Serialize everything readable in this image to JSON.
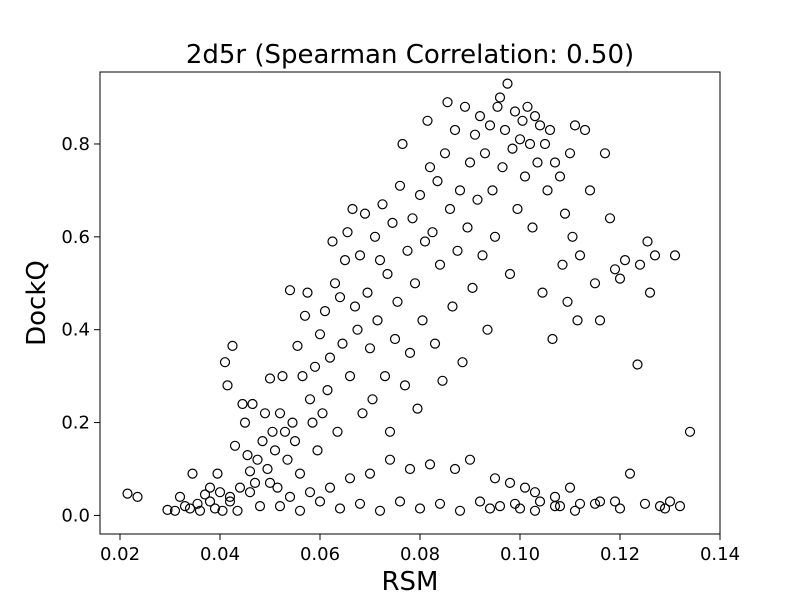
{
  "chart_data": {
    "type": "scatter",
    "title": "2d5r (Spearman Correlation: 0.50)",
    "xlabel": "RSM",
    "ylabel": "DockQ",
    "xlim": [
      0.016,
      0.14
    ],
    "ylim": [
      -0.04,
      0.955
    ],
    "xticks": [
      0.02,
      0.04,
      0.06,
      0.08,
      0.1,
      0.12,
      0.14
    ],
    "xtick_labels": [
      "0.02",
      "0.04",
      "0.06",
      "0.08",
      "0.10",
      "0.12",
      "0.14"
    ],
    "yticks": [
      0.0,
      0.2,
      0.4,
      0.6,
      0.8
    ],
    "ytick_labels": [
      "0.0",
      "0.2",
      "0.4",
      "0.6",
      "0.8"
    ],
    "grid": false,
    "marker": "open-circle",
    "marker_color": "#000000",
    "points": [
      [
        0.0215,
        0.047
      ],
      [
        0.0235,
        0.04
      ],
      [
        0.0295,
        0.012
      ],
      [
        0.031,
        0.01
      ],
      [
        0.032,
        0.04
      ],
      [
        0.033,
        0.02
      ],
      [
        0.034,
        0.015
      ],
      [
        0.0345,
        0.09
      ],
      [
        0.0355,
        0.025
      ],
      [
        0.036,
        0.01
      ],
      [
        0.037,
        0.045
      ],
      [
        0.038,
        0.03
      ],
      [
        0.039,
        0.015
      ],
      [
        0.0395,
        0.09
      ],
      [
        0.04,
        0.05
      ],
      [
        0.0405,
        0.01
      ],
      [
        0.041,
        0.33
      ],
      [
        0.0415,
        0.28
      ],
      [
        0.042,
        0.03
      ],
      [
        0.0425,
        0.365
      ],
      [
        0.043,
        0.15
      ],
      [
        0.0435,
        0.01
      ],
      [
        0.044,
        0.06
      ],
      [
        0.0445,
        0.24
      ],
      [
        0.045,
        0.2
      ],
      [
        0.0455,
        0.13
      ],
      [
        0.046,
        0.095
      ],
      [
        0.0465,
        0.24
      ],
      [
        0.047,
        0.07
      ],
      [
        0.0475,
        0.12
      ],
      [
        0.048,
        0.02
      ],
      [
        0.0485,
        0.16
      ],
      [
        0.049,
        0.22
      ],
      [
        0.0495,
        0.1
      ],
      [
        0.05,
        0.295
      ],
      [
        0.0505,
        0.18
      ],
      [
        0.051,
        0.14
      ],
      [
        0.0515,
        0.06
      ],
      [
        0.052,
        0.22
      ],
      [
        0.0525,
        0.3
      ],
      [
        0.053,
        0.18
      ],
      [
        0.0535,
        0.12
      ],
      [
        0.054,
        0.485
      ],
      [
        0.0545,
        0.2
      ],
      [
        0.055,
        0.16
      ],
      [
        0.0555,
        0.365
      ],
      [
        0.056,
        0.09
      ],
      [
        0.0565,
        0.3
      ],
      [
        0.057,
        0.43
      ],
      [
        0.0575,
        0.48
      ],
      [
        0.058,
        0.25
      ],
      [
        0.0585,
        0.2
      ],
      [
        0.059,
        0.32
      ],
      [
        0.0595,
        0.14
      ],
      [
        0.06,
        0.39
      ],
      [
        0.0605,
        0.22
      ],
      [
        0.061,
        0.44
      ],
      [
        0.0615,
        0.27
      ],
      [
        0.062,
        0.34
      ],
      [
        0.0625,
        0.59
      ],
      [
        0.063,
        0.5
      ],
      [
        0.0635,
        0.18
      ],
      [
        0.064,
        0.47
      ],
      [
        0.0645,
        0.37
      ],
      [
        0.065,
        0.55
      ],
      [
        0.0655,
        0.61
      ],
      [
        0.066,
        0.3
      ],
      [
        0.0665,
        0.66
      ],
      [
        0.067,
        0.45
      ],
      [
        0.0675,
        0.4
      ],
      [
        0.068,
        0.56
      ],
      [
        0.0685,
        0.22
      ],
      [
        0.069,
        0.65
      ],
      [
        0.0695,
        0.48
      ],
      [
        0.07,
        0.36
      ],
      [
        0.0705,
        0.25
      ],
      [
        0.071,
        0.6
      ],
      [
        0.0715,
        0.42
      ],
      [
        0.072,
        0.55
      ],
      [
        0.0725,
        0.67
      ],
      [
        0.073,
        0.3
      ],
      [
        0.0735,
        0.52
      ],
      [
        0.074,
        0.18
      ],
      [
        0.0745,
        0.63
      ],
      [
        0.075,
        0.38
      ],
      [
        0.0755,
        0.46
      ],
      [
        0.076,
        0.71
      ],
      [
        0.0765,
        0.8
      ],
      [
        0.077,
        0.28
      ],
      [
        0.0775,
        0.57
      ],
      [
        0.078,
        0.35
      ],
      [
        0.0785,
        0.64
      ],
      [
        0.079,
        0.5
      ],
      [
        0.0795,
        0.23
      ],
      [
        0.08,
        0.69
      ],
      [
        0.0805,
        0.42
      ],
      [
        0.081,
        0.59
      ],
      [
        0.0815,
        0.85
      ],
      [
        0.082,
        0.75
      ],
      [
        0.0825,
        0.61
      ],
      [
        0.083,
        0.37
      ],
      [
        0.0835,
        0.72
      ],
      [
        0.084,
        0.54
      ],
      [
        0.0845,
        0.29
      ],
      [
        0.085,
        0.78
      ],
      [
        0.0855,
        0.89
      ],
      [
        0.086,
        0.66
      ],
      [
        0.0865,
        0.45
      ],
      [
        0.087,
        0.83
      ],
      [
        0.0875,
        0.57
      ],
      [
        0.088,
        0.7
      ],
      [
        0.0885,
        0.33
      ],
      [
        0.089,
        0.88
      ],
      [
        0.0895,
        0.62
      ],
      [
        0.09,
        0.76
      ],
      [
        0.0905,
        0.49
      ],
      [
        0.091,
        0.82
      ],
      [
        0.0915,
        0.68
      ],
      [
        0.092,
        0.86
      ],
      [
        0.0925,
        0.56
      ],
      [
        0.093,
        0.78
      ],
      [
        0.0935,
        0.4
      ],
      [
        0.094,
        0.84
      ],
      [
        0.0945,
        0.7
      ],
      [
        0.095,
        0.6
      ],
      [
        0.0955,
        0.88
      ],
      [
        0.096,
        0.9
      ],
      [
        0.0965,
        0.75
      ],
      [
        0.097,
        0.83
      ],
      [
        0.0975,
        0.93
      ],
      [
        0.098,
        0.52
      ],
      [
        0.0985,
        0.79
      ],
      [
        0.099,
        0.87
      ],
      [
        0.0995,
        0.66
      ],
      [
        0.1,
        0.81
      ],
      [
        0.1005,
        0.85
      ],
      [
        0.101,
        0.73
      ],
      [
        0.1015,
        0.88
      ],
      [
        0.102,
        0.8
      ],
      [
        0.1025,
        0.62
      ],
      [
        0.103,
        0.86
      ],
      [
        0.1035,
        0.76
      ],
      [
        0.104,
        0.84
      ],
      [
        0.1045,
        0.48
      ],
      [
        0.105,
        0.8
      ],
      [
        0.1055,
        0.7
      ],
      [
        0.106,
        0.83
      ],
      [
        0.1065,
        0.38
      ],
      [
        0.107,
        0.76
      ],
      [
        0.108,
        0.73
      ],
      [
        0.1085,
        0.54
      ],
      [
        0.109,
        0.65
      ],
      [
        0.1095,
        0.46
      ],
      [
        0.11,
        0.78
      ],
      [
        0.1105,
        0.6
      ],
      [
        0.111,
        0.84
      ],
      [
        0.1115,
        0.42
      ],
      [
        0.112,
        0.56
      ],
      [
        0.113,
        0.83
      ],
      [
        0.114,
        0.7
      ],
      [
        0.115,
        0.5
      ],
      [
        0.116,
        0.42
      ],
      [
        0.117,
        0.78
      ],
      [
        0.118,
        0.64
      ],
      [
        0.119,
        0.53
      ],
      [
        0.12,
        0.51
      ],
      [
        0.121,
        0.55
      ],
      [
        0.122,
        0.09
      ],
      [
        0.1235,
        0.325
      ],
      [
        0.124,
        0.54
      ],
      [
        0.1255,
        0.59
      ],
      [
        0.126,
        0.48
      ],
      [
        0.127,
        0.56
      ],
      [
        0.13,
        0.03
      ],
      [
        0.131,
        0.56
      ],
      [
        0.132,
        0.02
      ],
      [
        0.134,
        0.18
      ],
      [
        0.052,
        0.02
      ],
      [
        0.056,
        0.01
      ],
      [
        0.06,
        0.03
      ],
      [
        0.064,
        0.015
      ],
      [
        0.068,
        0.025
      ],
      [
        0.072,
        0.01
      ],
      [
        0.076,
        0.03
      ],
      [
        0.08,
        0.015
      ],
      [
        0.084,
        0.025
      ],
      [
        0.088,
        0.01
      ],
      [
        0.092,
        0.03
      ],
      [
        0.096,
        0.02
      ],
      [
        0.1,
        0.015
      ],
      [
        0.104,
        0.03
      ],
      [
        0.108,
        0.02
      ],
      [
        0.112,
        0.025
      ],
      [
        0.116,
        0.03
      ],
      [
        0.12,
        0.015
      ],
      [
        0.095,
        0.08
      ],
      [
        0.098,
        0.07
      ],
      [
        0.101,
        0.06
      ],
      [
        0.103,
        0.05
      ],
      [
        0.107,
        0.04
      ],
      [
        0.11,
        0.06
      ],
      [
        0.087,
        0.1
      ],
      [
        0.09,
        0.12
      ],
      [
        0.082,
        0.11
      ],
      [
        0.078,
        0.1
      ],
      [
        0.074,
        0.12
      ],
      [
        0.07,
        0.09
      ],
      [
        0.066,
        0.08
      ],
      [
        0.062,
        0.06
      ],
      [
        0.058,
        0.05
      ],
      [
        0.054,
        0.04
      ],
      [
        0.05,
        0.07
      ],
      [
        0.046,
        0.05
      ],
      [
        0.042,
        0.04
      ],
      [
        0.038,
        0.06
      ],
      [
        0.125,
        0.025
      ],
      [
        0.128,
        0.02
      ],
      [
        0.129,
        0.015
      ],
      [
        0.119,
        0.03
      ],
      [
        0.115,
        0.025
      ],
      [
        0.111,
        0.01
      ],
      [
        0.107,
        0.02
      ],
      [
        0.103,
        0.01
      ],
      [
        0.099,
        0.025
      ],
      [
        0.094,
        0.015
      ]
    ]
  }
}
